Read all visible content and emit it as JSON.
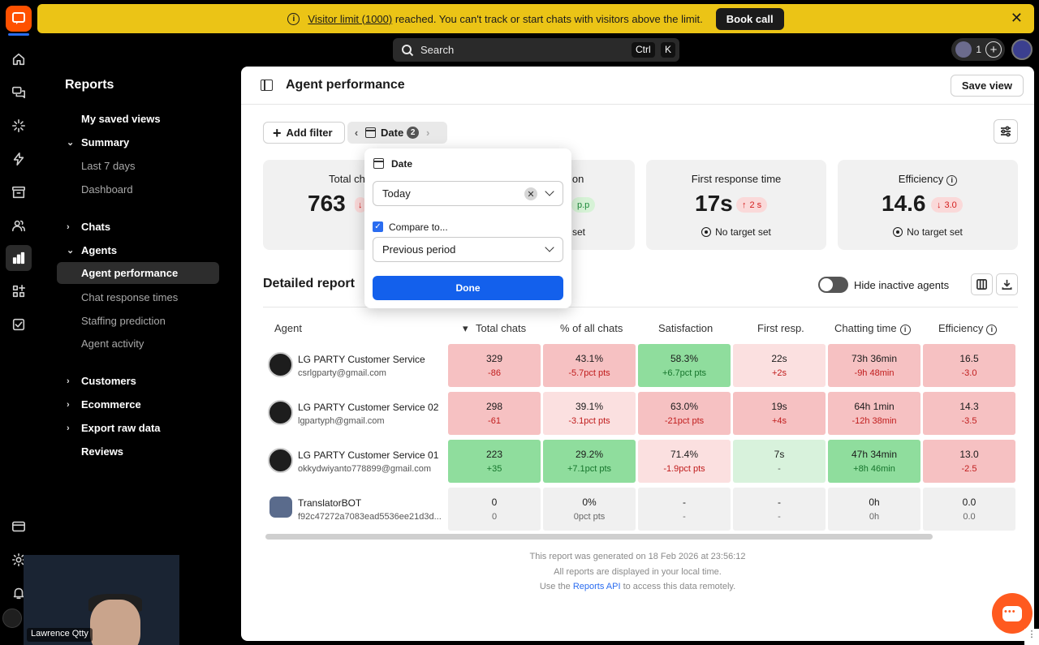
{
  "banner": {
    "link_text": "Visitor limit (1000)",
    "message": "reached. You can't track or start chats with visitors above the limit.",
    "button": "Book call",
    "close_icon": "close-icon"
  },
  "search": {
    "placeholder": "Search",
    "kbd1": "Ctrl",
    "kbd2": "K"
  },
  "topbar": {
    "visitors_count": "1"
  },
  "sidebar": {
    "title": "Reports",
    "items": [
      {
        "label": "My saved views"
      },
      {
        "label": "Summary"
      },
      {
        "label": "Last 7 days"
      },
      {
        "label": "Dashboard"
      },
      {
        "label": "Chats"
      },
      {
        "label": "Agents"
      },
      {
        "label": "Agent performance"
      },
      {
        "label": "Chat response times"
      },
      {
        "label": "Staffing prediction"
      },
      {
        "label": "Agent activity"
      },
      {
        "label": "Customers"
      },
      {
        "label": "Ecommerce"
      },
      {
        "label": "Export raw data"
      },
      {
        "label": "Reviews"
      }
    ]
  },
  "panel": {
    "title": "Agent performance",
    "save_view": "Save view",
    "add_filter": "Add filter",
    "date_chip": "Date",
    "date_badge": "2"
  },
  "cards": [
    {
      "title": "Total ch",
      "value": "763",
      "delta": ""
    },
    {
      "title": "ion",
      "delta": "p.p",
      "target": "set"
    },
    {
      "title": "First response time",
      "value": "17s",
      "delta": "2 s",
      "target": "No target set"
    },
    {
      "title": "Efficiency",
      "value": "14.6",
      "delta": "3.0",
      "target": "No target set"
    }
  ],
  "report": {
    "title": "Detailed report",
    "toggle_label": "Hide inactive agents",
    "columns": [
      "Agent",
      "Total chats",
      "% of all chats",
      "Satisfaction",
      "First resp.",
      "Chatting time",
      "Efficiency"
    ],
    "rows": [
      {
        "name": "LG PARTY Customer Service",
        "email": "csrlgparty@gmail.com",
        "cells": [
          {
            "v": "329",
            "d": "-86"
          },
          {
            "v": "43.1%",
            "d": "-5.7pct pts"
          },
          {
            "v": "58.3%",
            "d": "+6.7pct pts"
          },
          {
            "v": "22s",
            "d": "+2s"
          },
          {
            "v": "73h 36min",
            "d": "-9h 48min"
          },
          {
            "v": "16.5",
            "d": "-3.0"
          }
        ]
      },
      {
        "name": "LG PARTY Customer Service 02",
        "email": "lgpartyph@gmail.com",
        "cells": [
          {
            "v": "298",
            "d": "-61"
          },
          {
            "v": "39.1%",
            "d": "-3.1pct pts"
          },
          {
            "v": "63.0%",
            "d": "-21pct pts"
          },
          {
            "v": "19s",
            "d": "+4s"
          },
          {
            "v": "64h 1min",
            "d": "-12h 38min"
          },
          {
            "v": "14.3",
            "d": "-3.5"
          }
        ]
      },
      {
        "name": "LG PARTY Customer Service 01",
        "email": "okkydwiyanto778899@gmail.com",
        "cells": [
          {
            "v": "223",
            "d": "+35"
          },
          {
            "v": "29.2%",
            "d": "+7.1pct pts"
          },
          {
            "v": "71.4%",
            "d": "-1.9pct pts"
          },
          {
            "v": "7s",
            "d": "-"
          },
          {
            "v": "47h 34min",
            "d": "+8h 46min"
          },
          {
            "v": "13.0",
            "d": "-2.5"
          }
        ]
      },
      {
        "name": "TranslatorBOT",
        "email": "f92c47272a7083ead5536ee21d3d...",
        "cells": [
          {
            "v": "0",
            "d": "0"
          },
          {
            "v": "0%",
            "d": "0pct pts"
          },
          {
            "v": "-",
            "d": "-"
          },
          {
            "v": "-",
            "d": "-"
          },
          {
            "v": "0h",
            "d": "0h"
          },
          {
            "v": "0.0",
            "d": "0.0"
          }
        ]
      }
    ],
    "footer_line1": "This report was generated on 18 Feb 2026 at 23:56:12",
    "footer_line2": "All reports are displayed in your local time.",
    "footer_line3_pre": "Use the",
    "footer_line3_link": "Reports API",
    "footer_line3_post": "to access this data remotely."
  },
  "popover": {
    "title": "Date",
    "range": "Today",
    "compare_label": "Compare to...",
    "compare_value": "Previous period",
    "done": "Done"
  },
  "webcam": {
    "name": "Lawrence Qtty"
  },
  "colors": {
    "accent": "#1360ec",
    "brand": "#ff5100",
    "banner": "#ebc416"
  }
}
